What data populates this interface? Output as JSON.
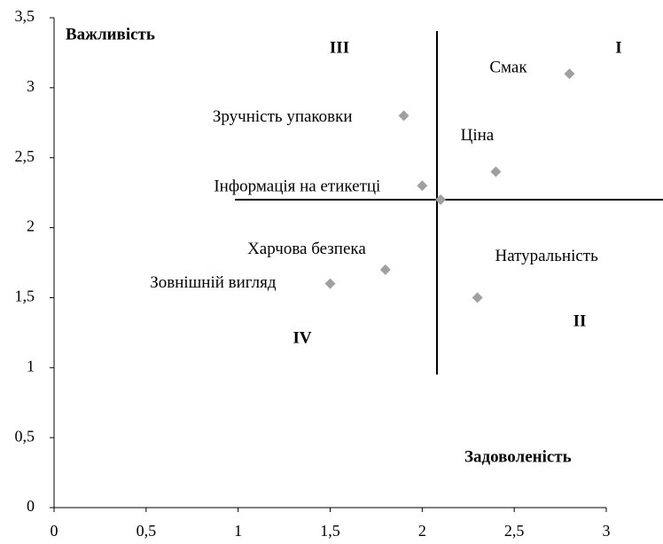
{
  "chart_data": {
    "type": "scatter",
    "y_label": "Важливість",
    "x_label": "Задоволеність",
    "quadrant_labels": [
      "I",
      "II",
      "III",
      "IV"
    ],
    "x": [
      2.8,
      1.9,
      2.4,
      2.0,
      2.1,
      1.8,
      1.5,
      2.3
    ],
    "values": [
      3.1,
      2.8,
      2.4,
      2.3,
      2.2,
      1.7,
      1.6,
      1.5
    ],
    "point_labels": [
      "Смак",
      "Зручність упаковки",
      "Ціна",
      "Інформація на етикетці",
      null,
      "Харчова безпека",
      "Зовнішній вигляд",
      "Натуральність"
    ],
    "color": "#a0a0a0",
    "xlim": [
      0,
      3
    ],
    "ylim": [
      0,
      3.5
    ],
    "xticks": [
      0,
      {
        "value": 0.5,
        "label": "0,5"
      },
      1,
      {
        "value": 1.5,
        "label": "1,5"
      },
      2,
      {
        "value": 2.5,
        "label": "2,5"
      },
      3
    ],
    "yticks": [
      0,
      {
        "value": 0.5,
        "label": "0,5"
      },
      1,
      {
        "value": 1.5,
        "label": "1,5"
      },
      2,
      {
        "value": 2.5,
        "label": "2,5"
      },
      3,
      {
        "value": 3.5,
        "label": "3,5"
      }
    ]
  }
}
